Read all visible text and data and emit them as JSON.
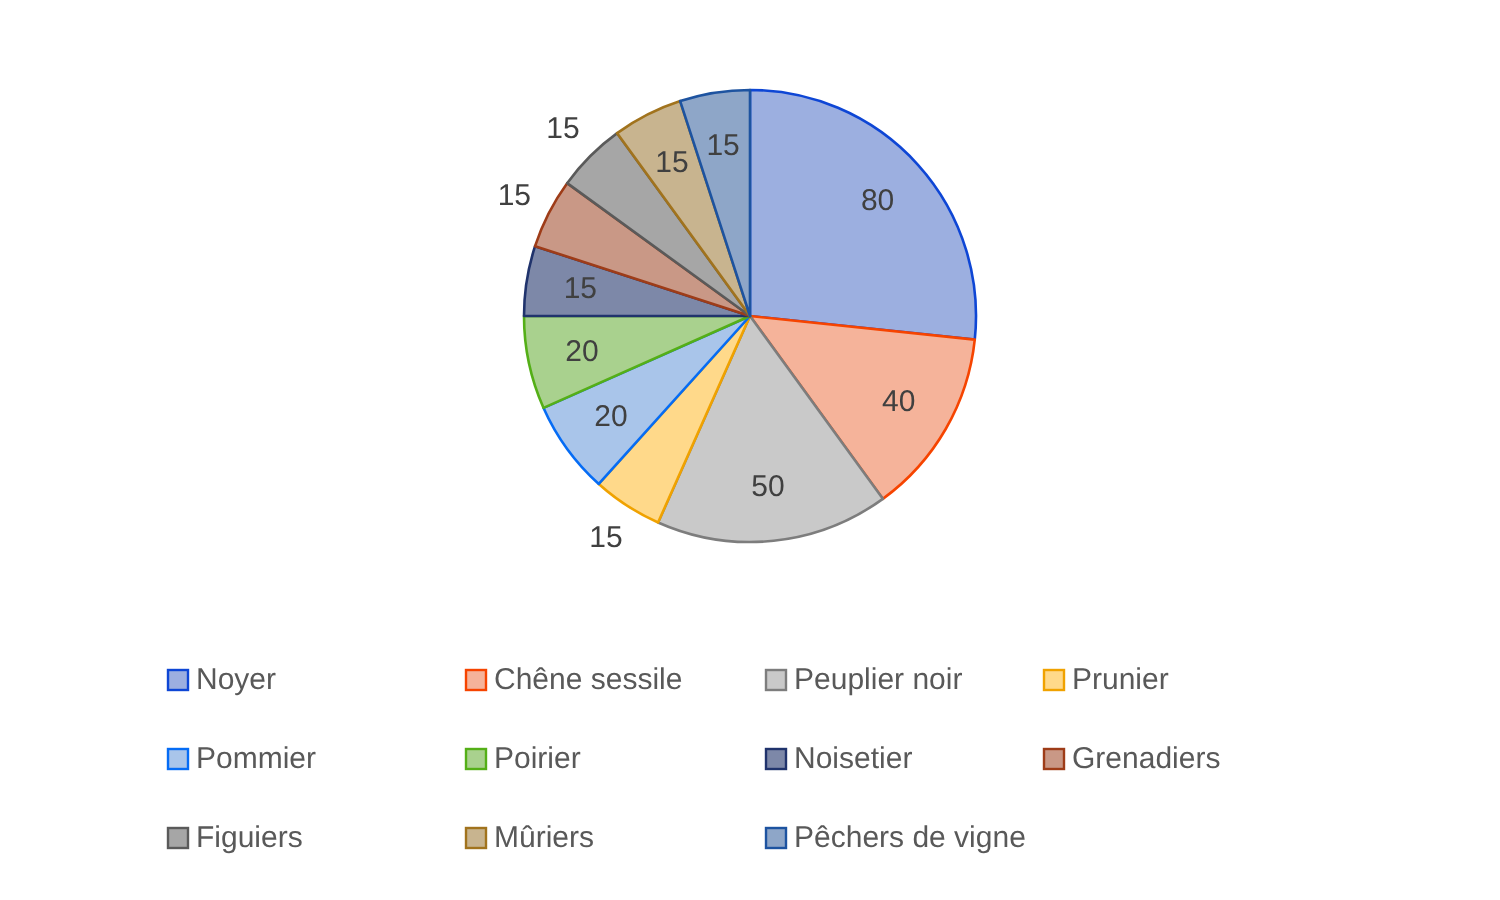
{
  "chart_data": {
    "type": "pie",
    "categories": [
      "Noyer",
      "Chêne sessile",
      "Peuplier noir",
      "Prunier",
      "Pommier",
      "Poirier",
      "Noisetier",
      "Grenadiers",
      "Figuiers",
      "Mûriers",
      "Pêchers de vigne"
    ],
    "values": [
      80,
      40,
      50,
      15,
      20,
      20,
      15,
      15,
      15,
      15,
      15
    ],
    "colors": [
      "#9cafe0",
      "#f5b39a",
      "#c9c9c9",
      "#ffd98a",
      "#a9c5ea",
      "#a9d18e",
      "#7d88a8",
      "#c99886",
      "#a6a6a6",
      "#c8b48f",
      "#8ea6c8"
    ],
    "data_labels": true,
    "legend": "bottom"
  }
}
